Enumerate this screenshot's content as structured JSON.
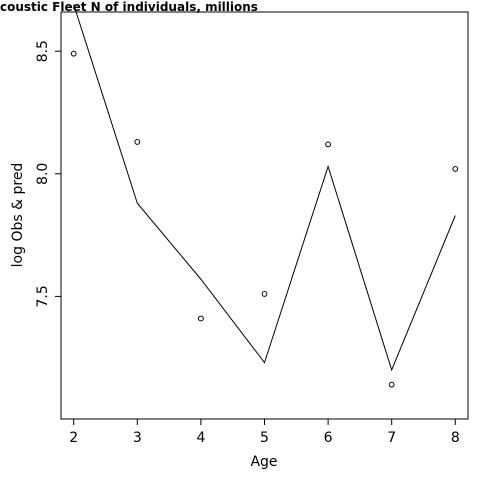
{
  "chart_data": {
    "type": "line",
    "title": "coustic Fleet   N of individuals, millions",
    "xlabel": "Age",
    "ylabel": "log Obs & pred",
    "x": [
      2,
      3,
      4,
      5,
      6,
      7,
      8
    ],
    "xlim": [
      1.8,
      8.2
    ],
    "ylim": [
      7.0,
      8.66
    ],
    "x_ticks": [
      "2",
      "3",
      "4",
      "5",
      "6",
      "7",
      "8"
    ],
    "y_ticks": [
      7.5,
      8.0,
      8.5
    ],
    "y_tick_labels": [
      "7.5",
      "8.0",
      "8.5"
    ],
    "grid": false,
    "series": [
      {
        "style": "line",
        "color": "#000000",
        "values": [
          8.69,
          7.88,
          7.57,
          7.23,
          8.03,
          7.2,
          7.83
        ]
      },
      {
        "style": "points",
        "marker": "open-circle",
        "color": "#000000",
        "values": [
          8.49,
          8.13,
          7.41,
          7.51,
          8.12,
          7.14,
          8.02
        ]
      }
    ]
  }
}
